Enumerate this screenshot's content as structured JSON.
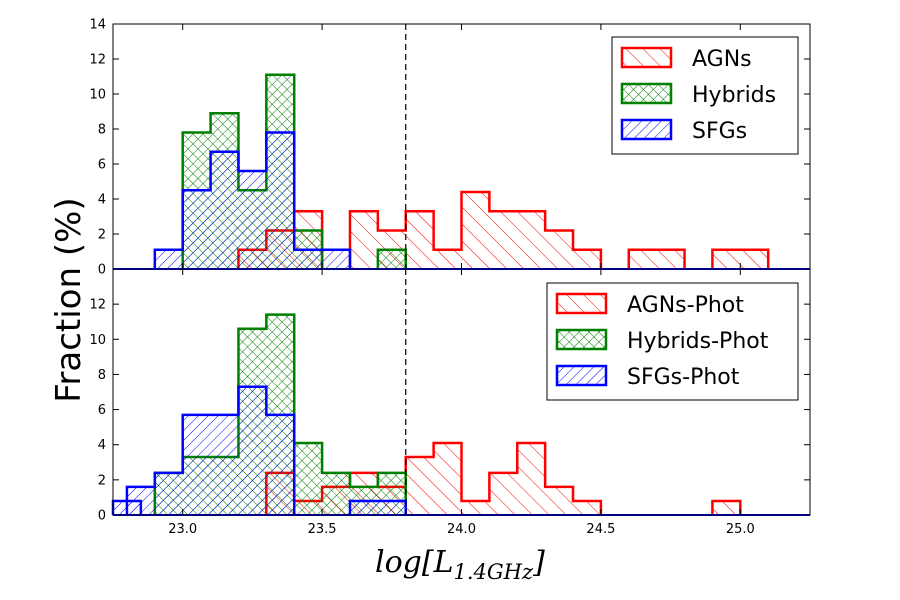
{
  "chart_data": [
    {
      "type": "histogram",
      "panel": "top",
      "ylim": [
        0,
        14
      ],
      "y_ticks": [
        "0",
        "2",
        "4",
        "6",
        "8",
        "10",
        "12",
        "14"
      ],
      "bin_width": 0.1,
      "series": [
        {
          "name": "AGNs",
          "color": "#ff0000",
          "hatch": "backslash",
          "bins": [
            [
              23.2,
              1.1
            ],
            [
              23.3,
              2.2
            ],
            [
              23.4,
              3.3
            ],
            [
              23.5,
              0
            ],
            [
              23.6,
              3.3
            ],
            [
              23.7,
              2.2
            ],
            [
              23.8,
              3.3
            ],
            [
              23.9,
              1.1
            ],
            [
              24.0,
              4.4
            ],
            [
              24.1,
              3.3
            ],
            [
              24.2,
              3.3
            ],
            [
              24.3,
              2.2
            ],
            [
              24.4,
              1.1
            ],
            [
              24.6,
              1.1
            ],
            [
              24.7,
              1.1
            ],
            [
              24.9,
              1.1
            ],
            [
              25.0,
              1.1
            ]
          ]
        },
        {
          "name": "Hybrids",
          "color": "#008000",
          "hatch": "crosshatch",
          "bins": [
            [
              23.0,
              7.8
            ],
            [
              23.1,
              8.9
            ],
            [
              23.2,
              4.5
            ],
            [
              23.3,
              11.1
            ],
            [
              23.4,
              2.2
            ],
            [
              23.7,
              1.1
            ]
          ]
        },
        {
          "name": "SFGs",
          "color": "#0000ff",
          "hatch": "slash",
          "bins": [
            [
              22.9,
              1.1
            ],
            [
              23.0,
              4.5
            ],
            [
              23.1,
              6.7
            ],
            [
              23.2,
              5.6
            ],
            [
              23.3,
              7.8
            ],
            [
              23.4,
              1.1
            ],
            [
              23.5,
              1.1
            ]
          ]
        }
      ]
    },
    {
      "type": "histogram",
      "panel": "bottom",
      "ylim": [
        0,
        14
      ],
      "y_ticks": [
        "0",
        "2",
        "4",
        "6",
        "8",
        "10",
        "12"
      ],
      "bin_width": 0.1,
      "series": [
        {
          "name": "AGNs-Phot",
          "color": "#ff0000",
          "hatch": "backslash",
          "bins": [
            [
              23.3,
              2.4
            ],
            [
              23.4,
              0.8
            ],
            [
              23.5,
              1.6
            ],
            [
              23.6,
              2.4
            ],
            [
              23.7,
              1.6
            ],
            [
              23.8,
              3.3
            ],
            [
              23.9,
              4.1
            ],
            [
              24.0,
              0.8
            ],
            [
              24.1,
              2.4
            ],
            [
              24.2,
              4.1
            ],
            [
              24.3,
              1.6
            ],
            [
              24.4,
              0.8
            ],
            [
              24.9,
              0.8
            ]
          ]
        },
        {
          "name": "Hybrids-Phot",
          "color": "#008000",
          "hatch": "crosshatch",
          "bins": [
            [
              22.9,
              2.4
            ],
            [
              23.0,
              3.3
            ],
            [
              23.1,
              3.3
            ],
            [
              23.2,
              10.6
            ],
            [
              23.3,
              11.4
            ],
            [
              23.4,
              4.1
            ],
            [
              23.5,
              2.4
            ],
            [
              23.6,
              1.6
            ],
            [
              23.7,
              2.4
            ]
          ]
        },
        {
          "name": "SFGs-Phot",
          "color": "#0000ff",
          "hatch": "slash",
          "bins": [
            [
              22.75,
              0.8
            ],
            [
              22.8,
              1.6
            ],
            [
              22.9,
              2.4
            ],
            [
              23.0,
              5.7
            ],
            [
              23.1,
              5.7
            ],
            [
              23.2,
              7.3
            ],
            [
              23.3,
              5.7
            ],
            [
              23.6,
              0.8
            ],
            [
              23.7,
              0.8
            ]
          ]
        }
      ]
    }
  ],
  "axes": {
    "xlim": [
      22.75,
      25.25
    ],
    "x_ticks": [
      {
        "value": 23.0,
        "label": "23.0"
      },
      {
        "value": 23.5,
        "label": "23.5"
      },
      {
        "value": 24.0,
        "label": "24.0"
      },
      {
        "value": 24.5,
        "label": "24.5"
      },
      {
        "value": 25.0,
        "label": "25.0"
      }
    ],
    "vline_x": 23.8,
    "ylabel": "Fraction (%)",
    "xlabel_main": "log[L",
    "xlabel_sub": "1.4GHz",
    "xlabel_end": "]"
  }
}
